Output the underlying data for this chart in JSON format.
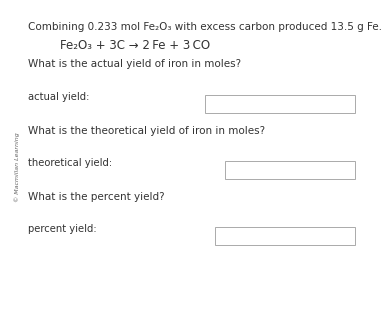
{
  "background_color": "#ffffff",
  "title_line": "Combining 0.233 mol Fe₂O₃ with excess carbon produced 13.5 g Fe.",
  "equation": "Fe₂O₃ + 3C → 2 Fe + 3 CO",
  "question1": "What is the actual yield of iron in moles?",
  "label1": "actual yield:",
  "question2": "What is the theoretical yield of iron in moles?",
  "label2": "theoretical yield:",
  "question3": "What is the percent yield?",
  "label3": "percent yield:",
  "watermark": "© Macmillan Learning",
  "text_color": "#333333",
  "box_facecolor": "#ffffff",
  "box_edgecolor": "#aaaaaa",
  "font_size_title": 7.5,
  "font_size_eq": 8.5,
  "font_size_question": 7.5,
  "font_size_label": 7.2,
  "font_size_watermark": 4.5
}
